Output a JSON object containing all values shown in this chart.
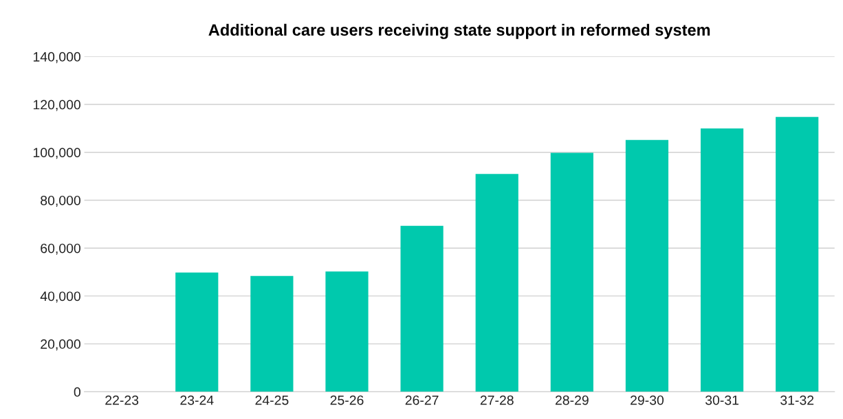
{
  "chart_data": {
    "type": "bar",
    "title": "Additional care users receiving state support in reformed system",
    "categories": [
      "22-23",
      "23-24",
      "24-25",
      "25-26",
      "26-27",
      "27-28",
      "28-29",
      "29-30",
      "30-31",
      "31-32"
    ],
    "values": [
      0,
      49800,
      48400,
      50200,
      69300,
      91000,
      99800,
      105200,
      110000,
      114800
    ],
    "color": "#00c9ad",
    "ylim": [
      0,
      140000
    ],
    "yticks": [
      {
        "value": 0,
        "label": "0"
      },
      {
        "value": 20000,
        "label": "20,000"
      },
      {
        "value": 40000,
        "label": "40,000"
      },
      {
        "value": 60000,
        "label": "60,000"
      },
      {
        "value": 80000,
        "label": "80,000"
      },
      {
        "value": 100000,
        "label": "100,000"
      },
      {
        "value": 120000,
        "label": "120,000"
      },
      {
        "value": 140000,
        "label": "140,000"
      }
    ],
    "grid": "y",
    "legend": false
  }
}
